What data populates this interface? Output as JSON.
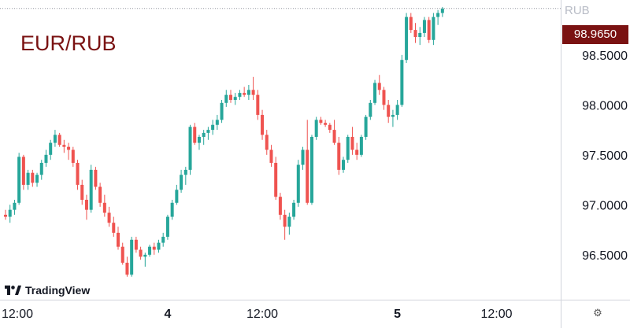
{
  "chart_data": {
    "type": "candlestick",
    "title": "EUR/RUB",
    "currency": "RUB",
    "last_price": "98.9650",
    "last_value": 98.965,
    "ylim": [
      96.05,
      99.05
    ],
    "y_ticks": [
      {
        "label": "98.5000",
        "value": 98.5
      },
      {
        "label": "98.0000",
        "value": 98.0
      },
      {
        "label": "97.5000",
        "value": 97.5
      },
      {
        "label": "97.0000",
        "value": 97.0
      },
      {
        "label": "96.5000",
        "value": 96.5
      }
    ],
    "x_ticks": [
      {
        "label": "12:00",
        "index": 0
      },
      {
        "label": "4",
        "index": 36
      },
      {
        "label": "12:00",
        "index": 57
      },
      {
        "label": "5",
        "index": 87
      },
      {
        "label": "12:00",
        "index": 109
      }
    ],
    "x_label_bold": [
      "4",
      "5"
    ],
    "candles": [
      [
        96.9,
        96.95,
        96.85,
        96.88
      ],
      [
        96.88,
        97.0,
        96.82,
        96.95
      ],
      [
        96.95,
        97.05,
        96.9,
        97.02
      ],
      [
        97.02,
        97.52,
        97.0,
        97.48
      ],
      [
        97.48,
        97.5,
        97.15,
        97.2
      ],
      [
        97.2,
        97.35,
        97.15,
        97.32
      ],
      [
        97.32,
        97.35,
        97.18,
        97.22
      ],
      [
        97.22,
        97.32,
        97.18,
        97.3
      ],
      [
        97.3,
        97.45,
        97.25,
        97.42
      ],
      [
        97.42,
        97.55,
        97.38,
        97.5
      ],
      [
        97.5,
        97.65,
        97.45,
        97.62
      ],
      [
        97.62,
        97.75,
        97.58,
        97.7
      ],
      [
        97.7,
        97.72,
        97.58,
        97.6
      ],
      [
        97.6,
        97.65,
        97.52,
        97.58
      ],
      [
        97.58,
        97.62,
        97.45,
        97.55
      ],
      [
        97.55,
        97.58,
        97.38,
        97.42
      ],
      [
        97.42,
        97.45,
        97.15,
        97.2
      ],
      [
        97.2,
        97.25,
        97.0,
        97.05
      ],
      [
        97.05,
        97.1,
        96.85,
        96.95
      ],
      [
        96.95,
        97.4,
        96.92,
        97.35
      ],
      [
        97.35,
        97.38,
        97.15,
        97.18
      ],
      [
        97.18,
        97.22,
        96.98,
        97.02
      ],
      [
        97.02,
        97.1,
        96.88,
        96.92
      ],
      [
        96.92,
        96.98,
        96.78,
        96.82
      ],
      [
        96.82,
        96.88,
        96.68,
        96.72
      ],
      [
        96.72,
        96.78,
        96.55,
        96.58
      ],
      [
        96.58,
        96.62,
        96.4,
        96.42
      ],
      [
        96.42,
        96.48,
        96.28,
        96.3
      ],
      [
        96.3,
        96.68,
        96.28,
        96.65
      ],
      [
        96.65,
        96.68,
        96.52,
        96.55
      ],
      [
        96.55,
        96.58,
        96.45,
        96.48
      ],
      [
        96.48,
        96.52,
        96.38,
        96.5
      ],
      [
        96.5,
        96.6,
        96.48,
        96.58
      ],
      [
        96.58,
        96.62,
        96.5,
        96.55
      ],
      [
        96.55,
        96.65,
        96.52,
        96.62
      ],
      [
        96.62,
        96.72,
        96.58,
        96.68
      ],
      [
        96.68,
        96.9,
        96.65,
        96.88
      ],
      [
        96.88,
        97.05,
        96.85,
        97.02
      ],
      [
        97.02,
        97.2,
        97.0,
        97.15
      ],
      [
        97.15,
        97.35,
        97.12,
        97.3
      ],
      [
        97.3,
        97.38,
        97.2,
        97.35
      ],
      [
        97.35,
        97.8,
        97.3,
        97.78
      ],
      [
        97.78,
        97.82,
        97.6,
        97.62
      ],
      [
        97.62,
        97.7,
        97.55,
        97.68
      ],
      [
        97.68,
        97.75,
        97.6,
        97.72
      ],
      [
        97.72,
        97.78,
        97.65,
        97.75
      ],
      [
        97.75,
        97.85,
        97.7,
        97.8
      ],
      [
        97.8,
        97.9,
        97.75,
        97.85
      ],
      [
        97.85,
        98.05,
        97.82,
        98.02
      ],
      [
        98.02,
        98.15,
        97.98,
        98.1
      ],
      [
        98.1,
        98.15,
        98.02,
        98.05
      ],
      [
        98.05,
        98.12,
        98.0,
        98.08
      ],
      [
        98.08,
        98.15,
        98.05,
        98.12
      ],
      [
        98.12,
        98.18,
        98.08,
        98.1
      ],
      [
        98.1,
        98.2,
        98.05,
        98.15
      ],
      [
        98.15,
        98.28,
        98.05,
        98.1
      ],
      [
        98.1,
        98.15,
        97.85,
        97.9
      ],
      [
        97.9,
        97.95,
        97.65,
        97.7
      ],
      [
        97.7,
        97.75,
        97.5,
        97.55
      ],
      [
        97.55,
        97.6,
        97.38,
        97.42
      ],
      [
        97.42,
        97.48,
        97.05,
        97.08
      ],
      [
        97.08,
        97.12,
        96.85,
        96.9
      ],
      [
        96.9,
        96.95,
        96.65,
        96.78
      ],
      [
        96.78,
        96.92,
        96.7,
        96.88
      ],
      [
        96.88,
        97.05,
        96.85,
        97.02
      ],
      [
        97.02,
        97.45,
        96.98,
        97.4
      ],
      [
        97.4,
        97.58,
        97.35,
        97.55
      ],
      [
        97.55,
        97.85,
        97.0,
        97.02
      ],
      [
        97.02,
        97.7,
        97.0,
        97.68
      ],
      [
        97.68,
        97.88,
        97.65,
        97.85
      ],
      [
        97.85,
        97.88,
        97.8,
        97.82
      ],
      [
        97.82,
        97.85,
        97.78,
        97.8
      ],
      [
        97.8,
        97.82,
        97.72,
        97.75
      ],
      [
        97.75,
        97.85,
        97.6,
        97.62
      ],
      [
        97.62,
        97.68,
        97.3,
        97.35
      ],
      [
        97.35,
        97.48,
        97.32,
        97.45
      ],
      [
        97.45,
        97.7,
        97.42,
        97.68
      ],
      [
        97.68,
        97.78,
        97.5,
        97.55
      ],
      [
        97.55,
        97.62,
        97.45,
        97.5
      ],
      [
        97.5,
        97.7,
        97.48,
        97.68
      ],
      [
        97.68,
        97.9,
        97.65,
        97.88
      ],
      [
        97.88,
        98.05,
        97.85,
        98.02
      ],
      [
        98.02,
        98.25,
        98.0,
        98.22
      ],
      [
        98.22,
        98.3,
        98.1,
        98.15
      ],
      [
        98.15,
        98.18,
        97.95,
        98.0
      ],
      [
        98.0,
        98.05,
        97.82,
        97.88
      ],
      [
        97.88,
        97.95,
        97.78,
        97.9
      ],
      [
        97.9,
        98.05,
        97.85,
        98.0
      ],
      [
        98.0,
        98.5,
        97.98,
        98.45
      ],
      [
        98.45,
        98.92,
        98.42,
        98.88
      ],
      [
        98.88,
        98.92,
        98.72,
        98.75
      ],
      [
        98.75,
        98.82,
        98.62,
        98.68
      ],
      [
        98.68,
        98.78,
        98.6,
        98.72
      ],
      [
        98.72,
        98.88,
        98.68,
        98.85
      ],
      [
        98.85,
        98.88,
        98.62,
        98.65
      ],
      [
        98.65,
        98.92,
        98.6,
        98.88
      ],
      [
        98.88,
        98.95,
        98.8,
        98.92
      ],
      [
        98.92,
        98.98,
        98.88,
        98.965
      ]
    ]
  },
  "colors": {
    "up": "#26a69a",
    "down": "#ef5350",
    "title": "#7a1212",
    "price_tag": "#7a1212",
    "axis_text": "#131722",
    "axis_line": "#d1d4dc"
  },
  "branding": {
    "logo_text": "TradingView",
    "logo_icon": "tradingview-logo-icon"
  },
  "controls": {
    "settings_icon": "settings-gear-icon",
    "settings_glyph": "⚙"
  }
}
